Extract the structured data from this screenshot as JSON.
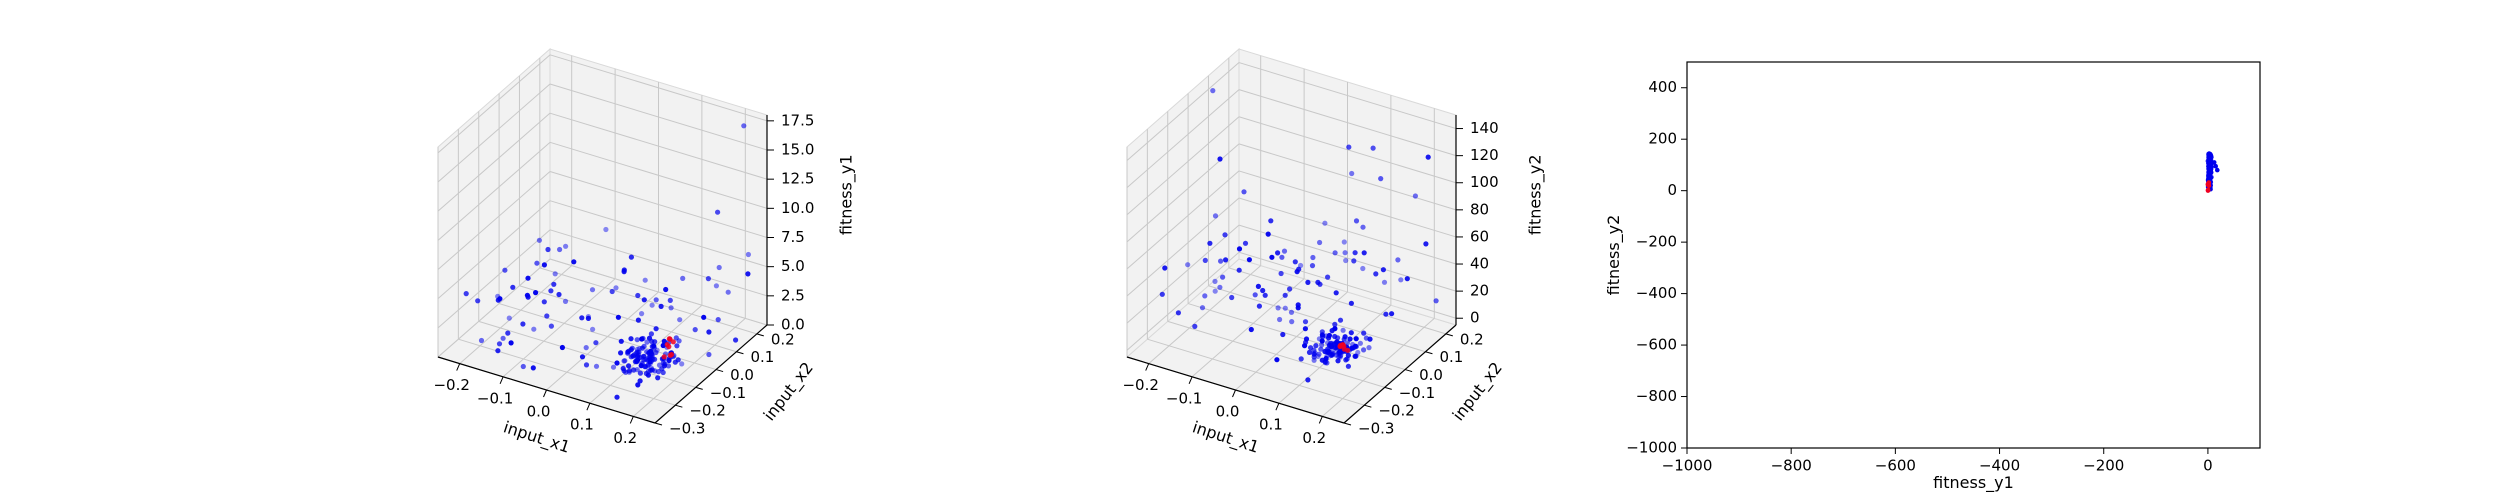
{
  "colors": {
    "series_main": "#0000ee",
    "series_highlight": "#ee0022",
    "pane": "#f2f2f2",
    "background": "#ffffff"
  },
  "chart_data": [
    {
      "type": "scatter",
      "projection": "3d",
      "xlabel": "input_x1",
      "ylabel": "input_x2",
      "zlabel": "fitness_y1",
      "xlim": [
        -0.25,
        0.25
      ],
      "ylim": [
        -0.3,
        0.25
      ],
      "zlim": [
        0,
        18
      ],
      "xticks": [
        "−0.2",
        "−0.1",
        "0.0",
        "0.1",
        "0.2"
      ],
      "xtick_values": [
        -0.2,
        -0.1,
        0.0,
        0.1,
        0.2
      ],
      "yticks": [
        "−0.3",
        "−0.2",
        "−0.1",
        "0.0",
        "0.1",
        "0.2"
      ],
      "ytick_values": [
        -0.3,
        -0.2,
        -0.1,
        0.0,
        0.1,
        0.2
      ],
      "zticks": [
        "0.0",
        "2.5",
        "5.0",
        "7.5",
        "10.0",
        "12.5",
        "15.0",
        "17.5"
      ],
      "ztick_values": [
        0,
        2.5,
        5,
        7.5,
        10,
        12.5,
        15,
        17.5
      ],
      "grid": true,
      "series": [
        {
          "color": "#0000ee",
          "approx_count": 200
        },
        {
          "color": "#ee0022",
          "approx_count": 8
        }
      ]
    },
    {
      "type": "scatter",
      "projection": "3d",
      "xlabel": "input_x1",
      "ylabel": "input_x2",
      "zlabel": "fitness_y2",
      "xlim": [
        -0.25,
        0.25
      ],
      "ylim": [
        -0.3,
        0.25
      ],
      "zlim": [
        -5,
        150
      ],
      "xticks": [
        "−0.2",
        "−0.1",
        "0.0",
        "0.1",
        "0.2"
      ],
      "xtick_values": [
        -0.2,
        -0.1,
        0.0,
        0.1,
        0.2
      ],
      "yticks": [
        "−0.3",
        "−0.2",
        "−0.1",
        "0.0",
        "0.1",
        "0.2"
      ],
      "ytick_values": [
        -0.3,
        -0.2,
        -0.1,
        0.0,
        0.1,
        0.2
      ],
      "zticks": [
        "0",
        "20",
        "40",
        "60",
        "80",
        "100",
        "120",
        "140"
      ],
      "ztick_values": [
        0,
        20,
        40,
        60,
        80,
        100,
        120,
        140
      ],
      "grid": true,
      "series": [
        {
          "color": "#0000ee",
          "approx_count": 200
        },
        {
          "color": "#ee0022",
          "approx_count": 8
        }
      ]
    },
    {
      "type": "scatter",
      "xlabel": "fitness_y1",
      "ylabel": "fitness_y2",
      "xlim": [
        -1000,
        100
      ],
      "ylim": [
        -1000,
        500
      ],
      "xticks": [
        "−1000",
        "−800",
        "−600",
        "−400",
        "−200",
        "0"
      ],
      "xtick_values": [
        -1000,
        -800,
        -600,
        -400,
        -200,
        0
      ],
      "yticks": [
        "−1000",
        "−800",
        "−600",
        "−400",
        "−200",
        "0",
        "200",
        "400"
      ],
      "ytick_values": [
        -1000,
        -800,
        -600,
        -400,
        -200,
        0,
        200,
        400
      ],
      "grid": false,
      "series": [
        {
          "color": "#0000ee",
          "approx_count": 200
        },
        {
          "color": "#ee0022",
          "approx_count": 8
        }
      ]
    }
  ]
}
